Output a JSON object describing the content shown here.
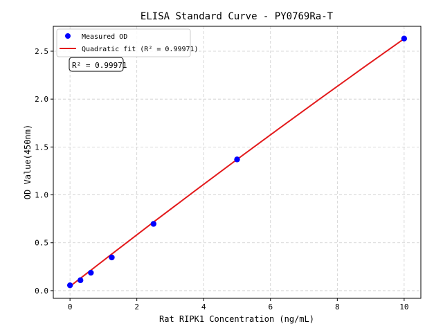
{
  "chart_data": {
    "type": "scatter",
    "title": "ELISA Standard Curve - PY0769Ra-T",
    "xlabel": "Rat RIPK1 Concentration (ng/mL)",
    "ylabel": "OD Value(450nm)",
    "xlim": [
      -0.5,
      10.5
    ],
    "ylim": [
      -0.08,
      2.76
    ],
    "xticks": [
      0,
      2,
      4,
      6,
      8,
      10
    ],
    "yticks": [
      0.0,
      0.5,
      1.0,
      1.5,
      2.0,
      2.5
    ],
    "ytick_labels": [
      "0.0",
      "0.5",
      "1.0",
      "1.5",
      "2.0",
      "2.5"
    ],
    "grid": true,
    "legend_position": "top-left",
    "series": [
      {
        "name": "Measured OD",
        "kind": "scatter",
        "color": "#0000ff",
        "x": [
          0,
          0.3125,
          0.625,
          1.25,
          2.5,
          5,
          10
        ],
        "y": [
          0.056,
          0.109,
          0.187,
          0.347,
          0.697,
          1.37,
          2.632
        ]
      },
      {
        "name": "Quadratic fit (R² = 0.99971)",
        "kind": "line",
        "color": "#e31a1c",
        "x": [
          0,
          1.25,
          2.5,
          3.75,
          5,
          6.25,
          7.5,
          8.75,
          10
        ],
        "y": [
          0.045,
          0.382,
          0.716,
          1.045,
          1.37,
          1.691,
          2.008,
          2.321,
          2.63
        ]
      }
    ],
    "annotation": "R² = 0.99971"
  }
}
